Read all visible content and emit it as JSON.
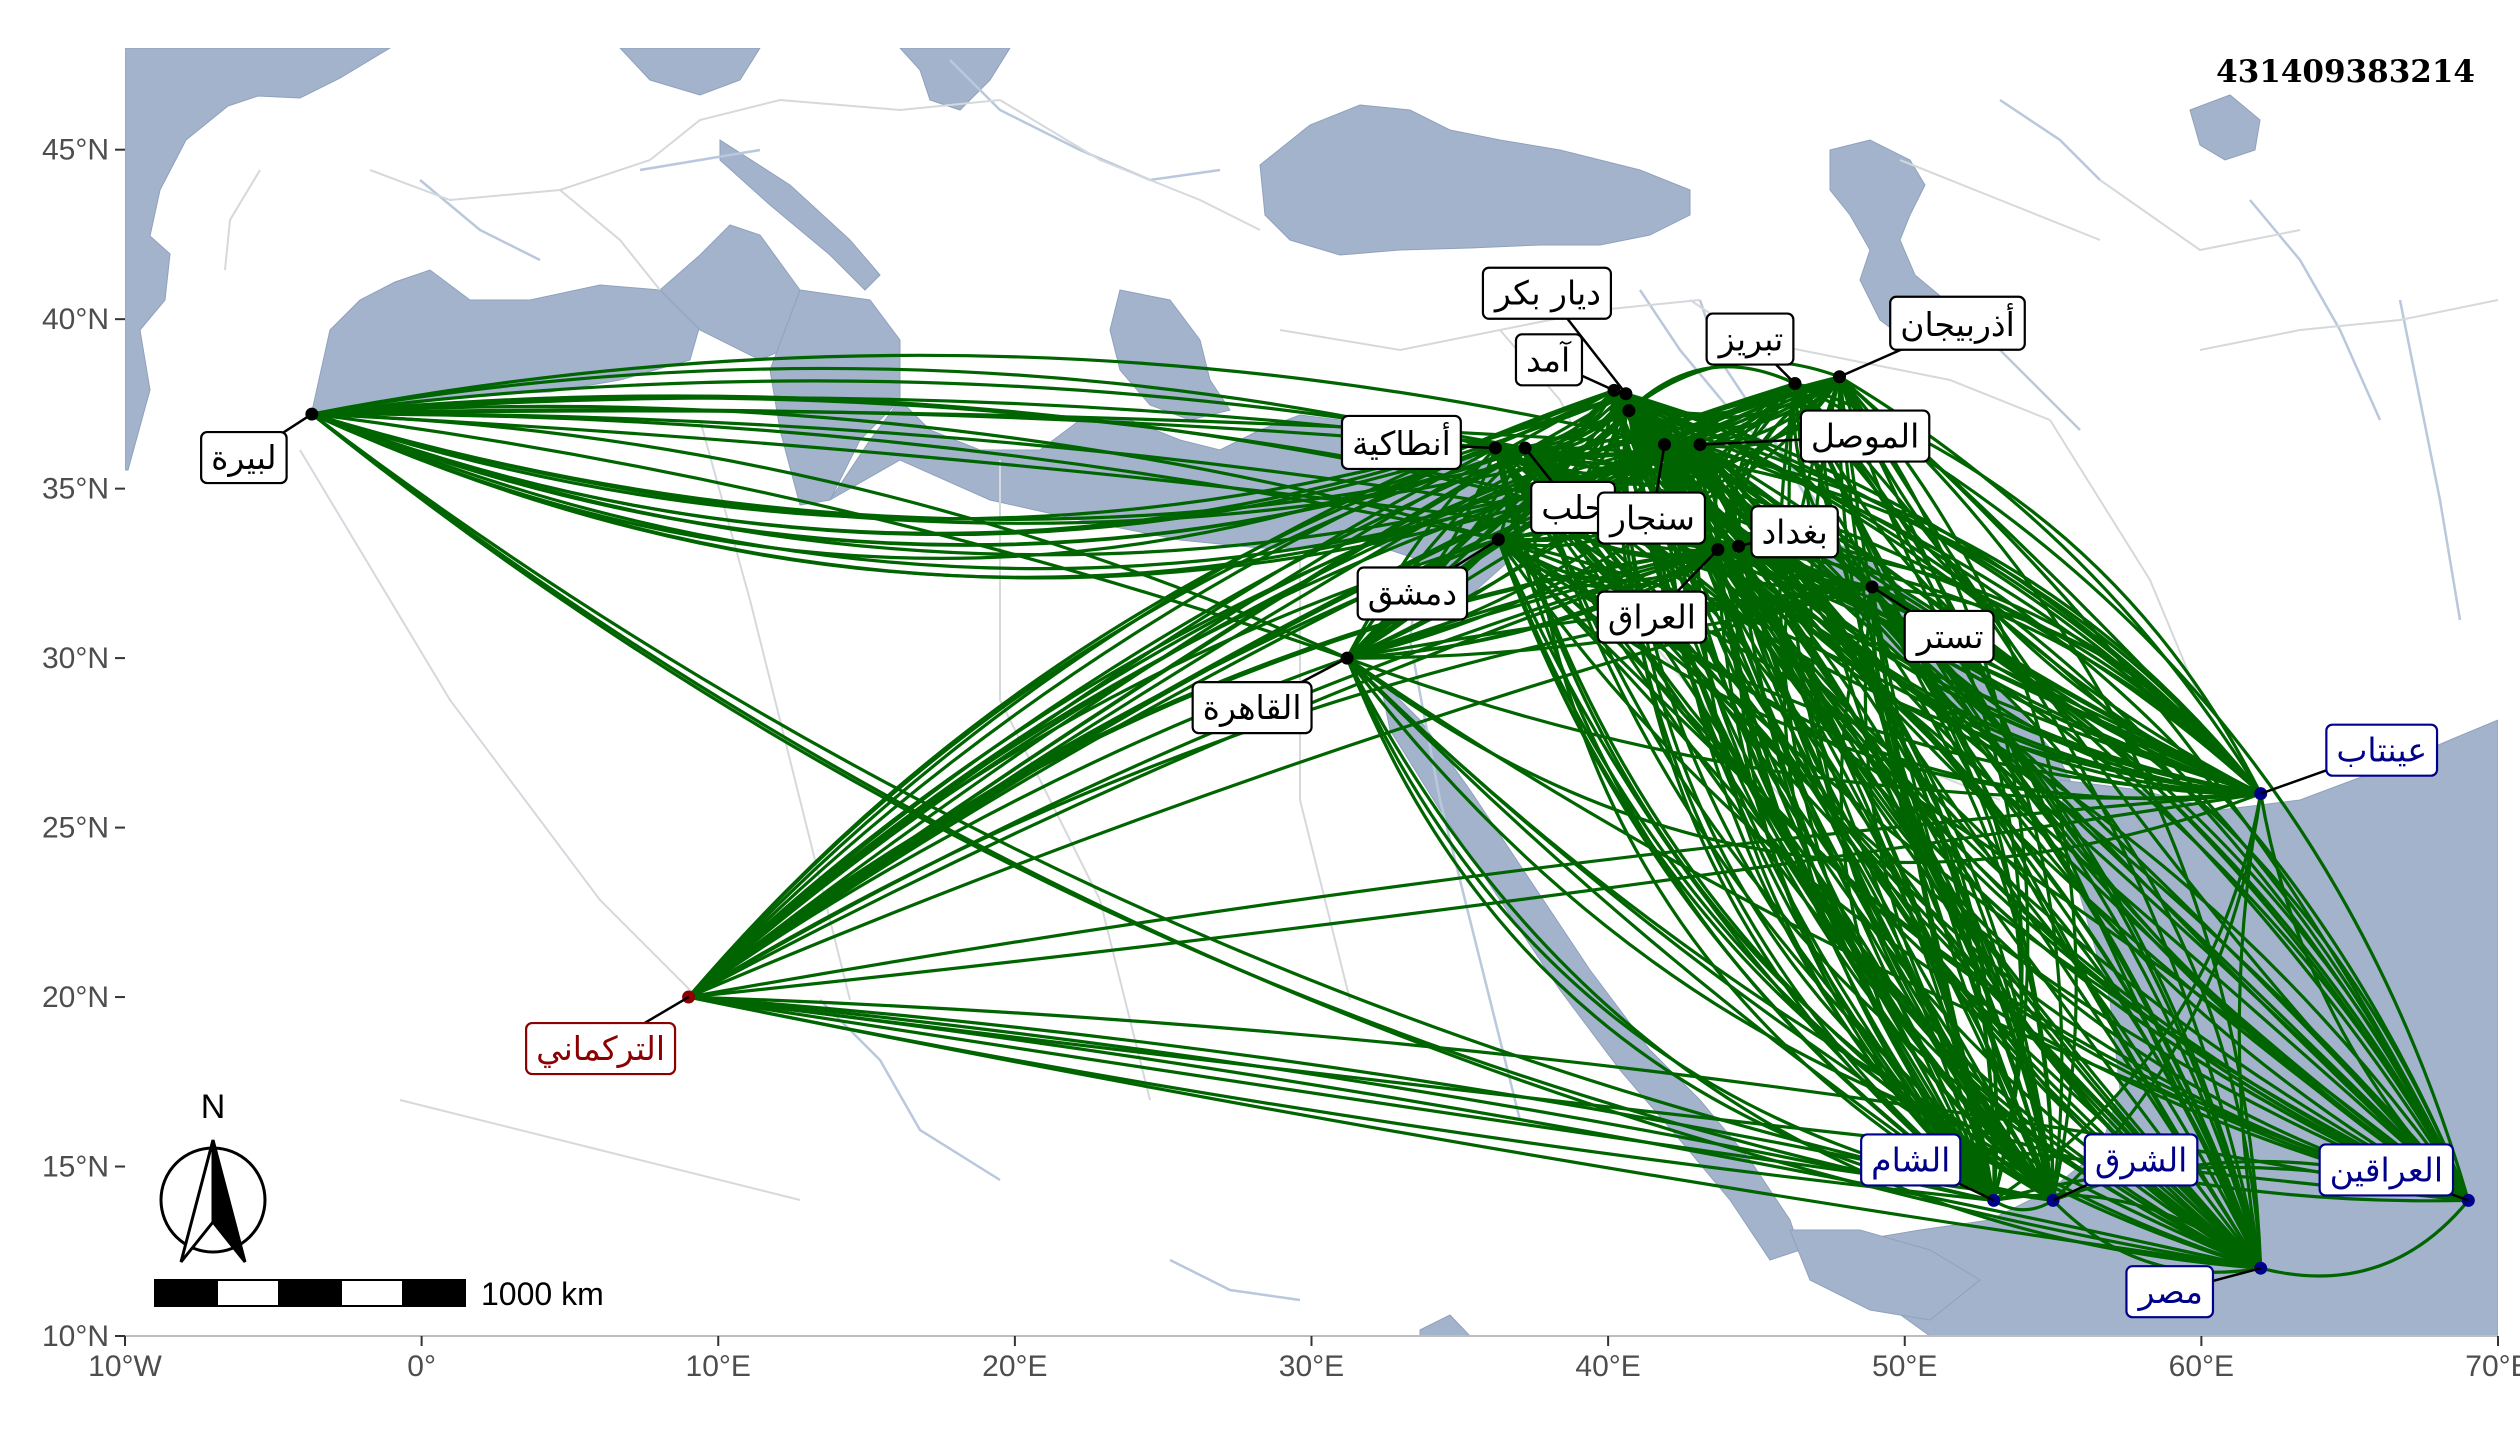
{
  "map_id": "431409383214",
  "axes": {
    "x_ticks": [
      {
        "lon": -10,
        "label": "10°W"
      },
      {
        "lon": 0,
        "label": "0°"
      },
      {
        "lon": 10,
        "label": "10°E"
      },
      {
        "lon": 20,
        "label": "20°E"
      },
      {
        "lon": 30,
        "label": "30°E"
      },
      {
        "lon": 40,
        "label": "40°E"
      },
      {
        "lon": 50,
        "label": "50°E"
      },
      {
        "lon": 60,
        "label": "60°E"
      },
      {
        "lon": 70,
        "label": "70°E"
      }
    ],
    "y_ticks": [
      {
        "lat": 10,
        "label": "10°N"
      },
      {
        "lat": 15,
        "label": "15°N"
      },
      {
        "lat": 20,
        "label": "20°N"
      },
      {
        "lat": 25,
        "label": "25°N"
      },
      {
        "lat": 30,
        "label": "30°N"
      },
      {
        "lat": 35,
        "label": "35°N"
      },
      {
        "lat": 40,
        "label": "40°N"
      },
      {
        "lat": 45,
        "label": "45°N"
      }
    ],
    "lon_range": [
      -10,
      70
    ],
    "lat_range": [
      10,
      48
    ]
  },
  "scale_bar": {
    "label": "1000 km"
  },
  "north_arrow": {
    "label": "N"
  },
  "colors": {
    "route": "#006400",
    "water": "#a3b3cc",
    "land": "#ffffff",
    "river": "#b9c8dc",
    "border": "#d5d8dc",
    "real_place": "#000000",
    "origin": "#8b0000",
    "fictional": "#00008b"
  },
  "places": [
    {
      "id": "libira",
      "name": "لبيرة",
      "lon": -3.7,
      "lat": 37.2,
      "kind": "real"
    },
    {
      "id": "cairo",
      "name": "القاهرة",
      "lon": 31.2,
      "lat": 30.0,
      "kind": "real"
    },
    {
      "id": "damascus",
      "name": "دمشق",
      "lon": 36.3,
      "lat": 33.5,
      "kind": "real"
    },
    {
      "id": "antioch",
      "name": "أنطاكية",
      "lon": 36.2,
      "lat": 36.2,
      "kind": "real"
    },
    {
      "id": "aleppo",
      "name": "حلب",
      "lon": 37.2,
      "lat": 36.2,
      "kind": "real"
    },
    {
      "id": "amid",
      "name": "آمد",
      "lon": 40.2,
      "lat": 37.9,
      "kind": "real"
    },
    {
      "id": "diyarbakr",
      "name": "ديار بكر",
      "lon": 40.6,
      "lat": 37.8,
      "kind": "real"
    },
    {
      "id": "sinjar",
      "name": "سنجار",
      "lon": 41.9,
      "lat": 36.3,
      "kind": "real"
    },
    {
      "id": "mosul",
      "name": "الموصل",
      "lon": 43.1,
      "lat": 36.3,
      "kind": "real"
    },
    {
      "id": "tabriz",
      "name": "تبريز",
      "lon": 46.3,
      "lat": 38.1,
      "kind": "real"
    },
    {
      "id": "azerbaijan",
      "name": "أذربيجان",
      "lon": 47.8,
      "lat": 38.3,
      "kind": "real"
    },
    {
      "id": "iraq",
      "name": "العراق",
      "lon": 43.7,
      "lat": 33.2,
      "kind": "real"
    },
    {
      "id": "baghdad",
      "name": "بغداد",
      "lon": 44.4,
      "lat": 33.3,
      "kind": "real"
    },
    {
      "id": "tustar",
      "name": "تستر",
      "lon": 48.9,
      "lat": 32.1,
      "kind": "real"
    },
    {
      "id": "mid",
      "name": "",
      "lon": 40.7,
      "lat": 37.3,
      "kind": "real"
    },
    {
      "id": "turkmani",
      "name": "التركماني",
      "lon": 9.0,
      "lat": 20.0,
      "kind": "origin"
    },
    {
      "id": "ayntab",
      "name": "عينتاب",
      "lon": 62.0,
      "lat": 26.0,
      "kind": "fictional"
    },
    {
      "id": "sham",
      "name": "الشام",
      "lon": 53.0,
      "lat": 14.0,
      "kind": "fictional"
    },
    {
      "id": "sharq",
      "name": "الشرق",
      "lon": 55.0,
      "lat": 14.0,
      "kind": "fictional"
    },
    {
      "id": "iraqayn",
      "name": "العراقين",
      "lon": 69.0,
      "lat": 14.0,
      "kind": "fictional"
    },
    {
      "id": "misr",
      "name": "مصر",
      "lon": 62.0,
      "lat": 12.0,
      "kind": "fictional"
    }
  ]
}
